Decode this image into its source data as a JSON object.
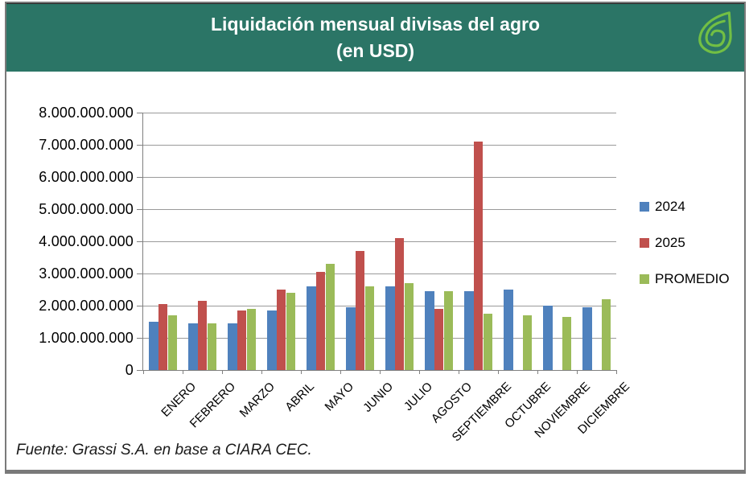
{
  "page": {
    "title_line1": "Liquidación mensual divisas del agro",
    "title_line2": "(en USD)",
    "source": "Fuente: Grassi S.A.  en base a CIARA CEC."
  },
  "colors": {
    "header_bg": "#2B7566",
    "logo_green": "#72BF44",
    "series_2024": "#4F81BD",
    "series_2025": "#C0504D",
    "series_promedio": "#9BBB59",
    "gridline": "#9A9A9A",
    "axis": "#808080"
  },
  "legend": {
    "items": [
      {
        "label": "2024",
        "color": "#4F81BD"
      },
      {
        "label": "2025",
        "color": "#C0504D"
      },
      {
        "label": "PROMEDIO",
        "color": "#9BBB59"
      }
    ]
  },
  "chart_data": {
    "type": "bar",
    "title": "Liquidación mensual divisas del agro (en USD)",
    "xlabel": "",
    "ylabel": "",
    "grid": true,
    "legend_position": "right",
    "ylim": [
      0,
      8000000000
    ],
    "ytick_step": 1000000000,
    "ytick_labels": [
      "0",
      "1.000.000.000",
      "2.000.000.000",
      "3.000.000.000",
      "4.000.000.000",
      "5.000.000.000",
      "6.000.000.000",
      "7.000.000.000",
      "8.000.000.000"
    ],
    "categories": [
      "ENERO",
      "FEBRERO",
      "MARZO",
      "ABRIL",
      "MAYO",
      "JUNIO",
      "JULIO",
      "AGOSTO",
      "SEPTIEMBRE",
      "OCTUBRE",
      "NOVIEMBRE",
      "DICIEMBRE"
    ],
    "series": [
      {
        "name": "2024",
        "color": "#4F81BD",
        "values": [
          1500000000,
          1450000000,
          1450000000,
          1850000000,
          2600000000,
          1950000000,
          2600000000,
          2450000000,
          2450000000,
          2500000000,
          2000000000,
          1950000000
        ]
      },
      {
        "name": "2025",
        "color": "#C0504D",
        "values": [
          2050000000,
          2150000000,
          1850000000,
          2500000000,
          3050000000,
          3700000000,
          4100000000,
          1900000000,
          7100000000,
          null,
          null,
          null
        ]
      },
      {
        "name": "PROMEDIO",
        "color": "#9BBB59",
        "values": [
          1700000000,
          1450000000,
          1900000000,
          2400000000,
          3300000000,
          2600000000,
          2700000000,
          2450000000,
          1750000000,
          1700000000,
          1650000000,
          2200000000
        ]
      }
    ]
  }
}
